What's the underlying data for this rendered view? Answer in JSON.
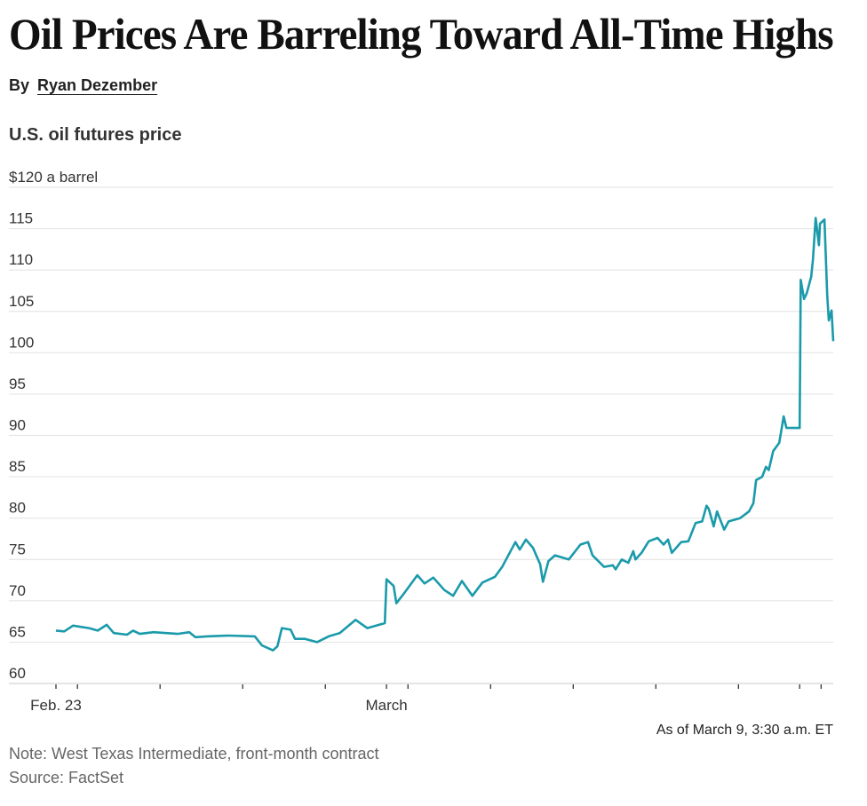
{
  "article": {
    "title": "Oil Prices Are Barreling Toward All-Time Highs",
    "byline_prefix": "By",
    "author": "Ryan Dezember"
  },
  "chart_data": {
    "type": "line",
    "title": "U.S. oil futures price",
    "ylabel": "$120 a barrel",
    "xlabel": "",
    "ylim": [
      60,
      120
    ],
    "yticks": [
      60,
      65,
      70,
      75,
      80,
      85,
      90,
      95,
      100,
      105,
      110,
      115,
      120
    ],
    "ytick_labels": [
      "60",
      "65",
      "70",
      "75",
      "80",
      "85",
      "90",
      "95",
      "100",
      "105",
      "110",
      "115",
      "$120 a barrel"
    ],
    "x_units": "days since Feb. 23",
    "xlim": [
      0,
      14.11
    ],
    "xticks": [
      0,
      0.39,
      1.89,
      3.39,
      4.89,
      6,
      6.39,
      7.89,
      9.39,
      10.89,
      12.39,
      13.5,
      13.89
    ],
    "xtick_labels": [
      {
        "x": 0,
        "label": "Feb. 23"
      },
      {
        "x": 6,
        "label": "March"
      }
    ],
    "grid": true,
    "line_color": "#1a9aaa",
    "series": [
      {
        "name": "WTI front-month futures",
        "x": [
          0,
          0.15,
          0.31,
          0.6,
          0.76,
          0.92,
          1.05,
          1.29,
          1.4,
          1.52,
          1.77,
          2.21,
          2.42,
          2.53,
          2.74,
          3.13,
          3.61,
          3.74,
          3.94,
          4.02,
          4.1,
          4.26,
          4.34,
          4.52,
          4.74,
          4.95,
          5.15,
          5.44,
          5.65,
          5.97,
          6.0,
          6.13,
          6.18,
          6.32,
          6.56,
          6.69,
          6.85,
          7.05,
          7.21,
          7.37,
          7.56,
          7.74,
          7.97,
          8.1,
          8.34,
          8.42,
          8.53,
          8.66,
          8.79,
          8.84,
          8.94,
          9.06,
          9.31,
          9.52,
          9.66,
          9.74,
          9.95,
          10.11,
          10.16,
          10.27,
          10.39,
          10.48,
          10.52,
          10.63,
          10.76,
          10.92,
          11.03,
          11.11,
          11.18,
          11.35,
          11.48,
          11.61,
          11.73,
          11.81,
          11.85,
          11.94,
          12.0,
          12.13,
          12.21,
          12.42,
          12.58,
          12.66,
          12.71,
          12.82,
          12.89,
          12.94,
          13.02,
          13.13,
          13.21,
          13.26,
          13.37,
          13.5,
          13.52,
          13.58,
          13.63,
          13.71,
          13.74,
          13.79,
          13.85,
          13.87,
          13.95,
          14.0,
          14.03,
          14.08,
          14.11
        ],
        "values": [
          66.4,
          66.3,
          67.0,
          66.7,
          66.4,
          67.1,
          66.1,
          65.9,
          66.4,
          66.0,
          66.2,
          66.0,
          66.2,
          65.6,
          65.7,
          65.8,
          65.7,
          64.6,
          64.0,
          64.5,
          66.7,
          66.5,
          65.4,
          65.4,
          65.0,
          65.7,
          66.1,
          67.7,
          66.7,
          67.3,
          72.6,
          71.8,
          69.7,
          70.9,
          73.1,
          72.1,
          72.8,
          71.3,
          70.6,
          72.4,
          70.6,
          72.2,
          72.9,
          74.1,
          77.1,
          76.2,
          77.4,
          76.4,
          74.4,
          72.3,
          74.8,
          75.5,
          75.0,
          76.8,
          77.1,
          75.5,
          74.1,
          74.3,
          73.8,
          75.0,
          74.6,
          76.0,
          75.0,
          75.8,
          77.2,
          77.6,
          76.8,
          77.4,
          75.8,
          77.1,
          77.2,
          79.4,
          79.6,
          81.5,
          81.1,
          79.0,
          80.8,
          78.6,
          79.6,
          80.0,
          80.8,
          81.8,
          84.6,
          85.0,
          86.2,
          85.8,
          88.1,
          89.1,
          92.3,
          90.9,
          90.9,
          90.9,
          108.8,
          106.5,
          107.2,
          109.2,
          111.2,
          116.3,
          113.0,
          115.6,
          116.1,
          107.0,
          103.9,
          105.1,
          101.4
        ]
      }
    ],
    "annotation": "As of March 9, 3:30 a.m. ET",
    "note": "Note: West Texas Intermediate, front-month contract",
    "source": "Source: FactSet"
  }
}
